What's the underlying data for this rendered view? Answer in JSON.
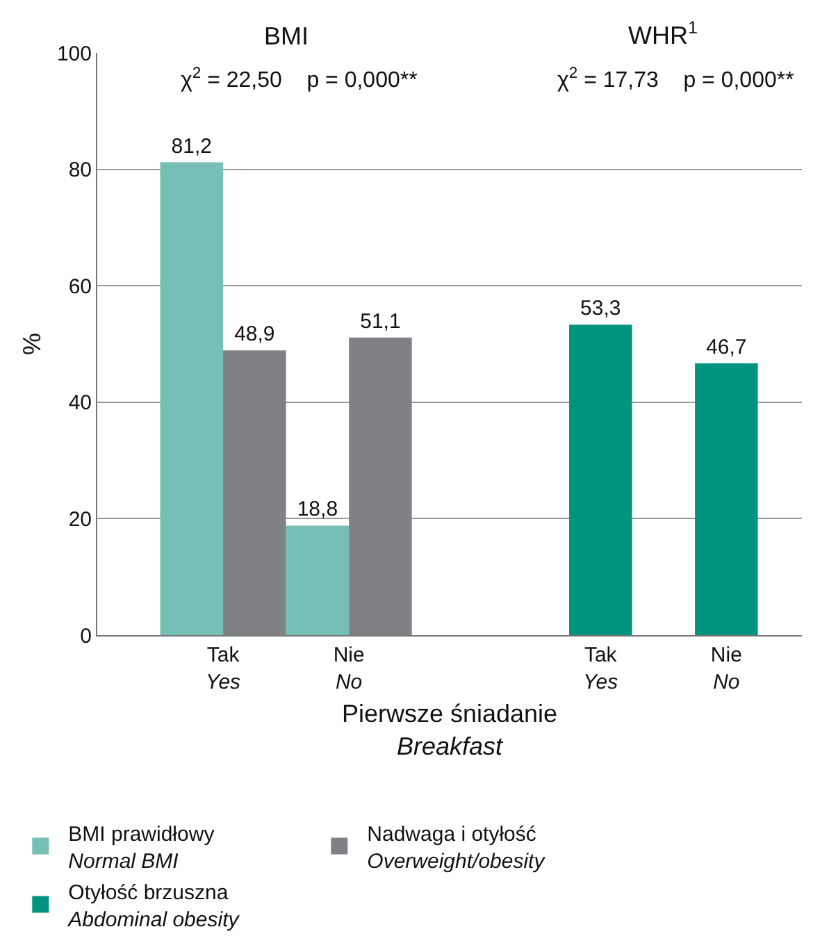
{
  "chart_data": {
    "type": "bar",
    "categories": [
      "Tak\nYes",
      "Nie\nNo",
      null,
      "Tak\nYes",
      "Nie\nNo"
    ],
    "series": [
      {
        "name": "BMI prawidłowy\nNormal BMI",
        "color": "#76bfb6",
        "values": [
          81.2,
          18.8,
          null,
          null,
          null
        ],
        "value_labels": [
          "81,2",
          "18,8",
          null,
          null,
          null
        ]
      },
      {
        "name": "Nadwaga i otyłość\nOverweight/obesity",
        "color": "#808184",
        "values": [
          48.9,
          51.1,
          null,
          null,
          null
        ],
        "value_labels": [
          "48,9",
          "51,1",
          null,
          null,
          null
        ]
      },
      {
        "name": "Otyłość brzuszna\nAbdominal obesity",
        "color": "#00947f",
        "values": [
          null,
          null,
          null,
          53.3,
          46.7
        ],
        "value_labels": [
          null,
          null,
          null,
          "53,3",
          "46,7"
        ]
      }
    ],
    "xlabel": "Pierwsze śniadanie\nBreakfast",
    "ylabel": "%",
    "ylim": [
      0,
      100
    ],
    "yticks": [
      0,
      20,
      40,
      60,
      80,
      100
    ],
    "grid": "y",
    "legend": "bottom",
    "annotations": [
      "BMI",
      "χ$^{2}$ = 22,50    p = 0,000**",
      "WHR$^{1}$",
      "χ$^{2}$ = 17,73    p = 0,000**"
    ]
  }
}
